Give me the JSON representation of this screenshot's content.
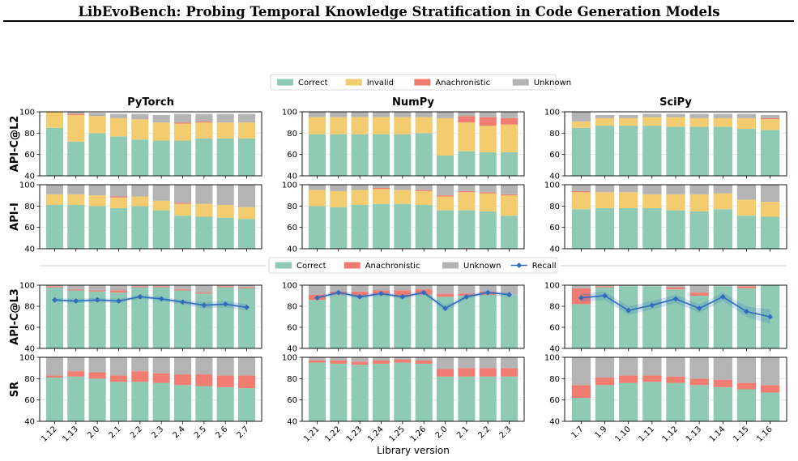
{
  "page": {
    "title": "LibEvoBench: Probing Temporal Knowledge Stratification in Code Generation Models"
  },
  "figure": {
    "columns": [
      "PyTorch",
      "NumPy",
      "SciPy"
    ],
    "rows": [
      "API-C@L2",
      "API-I",
      "API-C@L3",
      "SR"
    ],
    "xlabel": "Library version",
    "legend_top": [
      {
        "label": "Correct",
        "color": "#8ecab4"
      },
      {
        "label": "Invalid",
        "color": "#f2cc6e"
      },
      {
        "label": "Anachronistic",
        "color": "#f07c72"
      },
      {
        "label": "Unknown",
        "color": "#b4b4b4"
      }
    ],
    "legend_bottom": [
      {
        "label": "Correct",
        "color": "#8ecab4"
      },
      {
        "label": "Anachronistic",
        "color": "#f07c72"
      },
      {
        "label": "Unknown",
        "color": "#b4b4b4"
      },
      {
        "label": "Recall",
        "color": "#2f6cc0"
      }
    ]
  },
  "chart_data": {
    "type": "bar",
    "stacked": true,
    "ylim": [
      40,
      100
    ],
    "yticks": [
      40,
      60,
      80,
      100
    ],
    "grid": "horizontal",
    "categories": {
      "PyTorch": [
        "1.12",
        "1.13",
        "2.0",
        "2.1",
        "2.2",
        "2.3",
        "2.4",
        "2.5",
        "2.6",
        "2.7"
      ],
      "NumPy": [
        "1.21",
        "1.22",
        "1.23",
        "1.24",
        "1.25",
        "1.26",
        "2.0",
        "2.1",
        "2.2",
        "2.3"
      ],
      "SciPy": [
        "1.7",
        "1.9",
        "1.10",
        "1.11",
        "1.12",
        "1.13",
        "1.14",
        "1.15",
        "1.16"
      ]
    },
    "panels": {
      "API-C@L2": {
        "series_order": [
          "Correct",
          "Invalid",
          "Anachronistic",
          "Unknown"
        ],
        "PyTorch": {
          "Correct": [
            85,
            72,
            80,
            77,
            74,
            73,
            73,
            75,
            75,
            75
          ],
          "Invalid": [
            15,
            25,
            16,
            17,
            19,
            17,
            16,
            15,
            15,
            15
          ],
          "Anachronistic": [
            0,
            1,
            0,
            0,
            0,
            0,
            1,
            1,
            0,
            0
          ],
          "Unknown": [
            0,
            2,
            3,
            4,
            5,
            7,
            8,
            7,
            8,
            8
          ]
        },
        "NumPy": {
          "Correct": [
            79,
            79,
            79,
            79,
            79,
            80,
            59,
            63,
            62,
            62
          ],
          "Invalid": [
            16,
            16,
            16,
            16,
            16,
            15,
            35,
            27,
            25,
            26
          ],
          "Anachronistic": [
            0,
            0,
            0,
            0,
            0,
            0,
            0,
            6,
            8,
            6
          ],
          "Unknown": [
            5,
            5,
            5,
            5,
            5,
            5,
            6,
            4,
            5,
            6
          ]
        },
        "SciPy": {
          "Correct": [
            85,
            87,
            87,
            87,
            86,
            86,
            86,
            84,
            83
          ],
          "Invalid": [
            6,
            7,
            7,
            8,
            9,
            8,
            8,
            10,
            10
          ],
          "Anachronistic": [
            0,
            0,
            0,
            0,
            0,
            0,
            0,
            0,
            1
          ],
          "Unknown": [
            9,
            3,
            3,
            3,
            3,
            4,
            4,
            4,
            3
          ]
        }
      },
      "API-I": {
        "series_order": [
          "Correct",
          "Invalid",
          "Anachronistic",
          "Unknown"
        ],
        "PyTorch": {
          "Correct": [
            81,
            81,
            80,
            78,
            80,
            76,
            71,
            70,
            69,
            68
          ],
          "Invalid": [
            10,
            10,
            10,
            10,
            9,
            9,
            11,
            12,
            12,
            11
          ],
          "Anachronistic": [
            0,
            0,
            0,
            1,
            0,
            0,
            1,
            0,
            0,
            0
          ],
          "Unknown": [
            9,
            9,
            10,
            11,
            11,
            15,
            17,
            18,
            19,
            21
          ]
        },
        "NumPy": {
          "Correct": [
            80,
            79,
            81,
            82,
            82,
            81,
            76,
            76,
            75,
            71
          ],
          "Invalid": [
            15,
            15,
            14,
            14,
            13,
            13,
            13,
            17,
            17,
            19
          ],
          "Anachronistic": [
            0,
            0,
            0,
            1,
            0,
            1,
            1,
            1,
            1,
            1
          ],
          "Unknown": [
            5,
            6,
            5,
            3,
            5,
            5,
            10,
            6,
            7,
            9
          ]
        },
        "SciPy": {
          "Correct": [
            77,
            78,
            78,
            78,
            76,
            75,
            77,
            71,
            70
          ],
          "Invalid": [
            16,
            15,
            15,
            13,
            15,
            16,
            15,
            15,
            14
          ],
          "Anachronistic": [
            1,
            0,
            0,
            0,
            0,
            0,
            0,
            0,
            0
          ],
          "Unknown": [
            6,
            7,
            7,
            9,
            9,
            9,
            8,
            14,
            16
          ]
        }
      },
      "API-C@L3": {
        "series_order": [
          "Correct",
          "Anachronistic",
          "Unknown"
        ],
        "PyTorch": {
          "Correct": [
            98,
            95,
            94,
            93,
            98,
            98,
            95,
            92,
            98,
            97
          ],
          "Anachronistic": [
            1,
            1,
            1,
            2,
            1,
            1,
            1,
            1,
            1,
            1
          ],
          "Unknown": [
            1,
            4,
            5,
            5,
            1,
            1,
            4,
            7,
            1,
            2
          ],
          "Recall": [
            86,
            85,
            86,
            85,
            89,
            87,
            84,
            81,
            82,
            79
          ],
          "Recall_band": [
            [
              84,
              88
            ],
            [
              83,
              87
            ],
            [
              84,
              88
            ],
            [
              83,
              87
            ],
            [
              87,
              91
            ],
            [
              85,
              89
            ],
            [
              82,
              86
            ],
            [
              78,
              84
            ],
            [
              79,
              85
            ],
            [
              76,
              82
            ]
          ]
        },
        "NumPy": {
          "Correct": [
            86,
            91,
            90,
            91,
            89,
            91,
            89,
            90,
            91,
            91
          ],
          "Anachronistic": [
            5,
            3,
            4,
            4,
            6,
            5,
            3,
            2,
            3,
            0
          ],
          "Unknown": [
            9,
            6,
            6,
            5,
            5,
            4,
            8,
            8,
            6,
            9
          ],
          "Recall": [
            88,
            93,
            89,
            92,
            89,
            93,
            78,
            89,
            93,
            91
          ],
          "Recall_band": [
            [
              86,
              90
            ],
            [
              91,
              95
            ],
            [
              87,
              91
            ],
            [
              90,
              94
            ],
            [
              87,
              91
            ],
            [
              91,
              95
            ],
            [
              75,
              81
            ],
            [
              87,
              91
            ],
            [
              91,
              95
            ],
            [
              89,
              93
            ]
          ]
        },
        "SciPy": {
          "Correct": [
            82,
            98,
            99,
            99,
            96,
            90,
            99,
            97,
            100
          ],
          "Anachronistic": [
            15,
            1,
            0,
            0,
            2,
            3,
            0,
            2,
            0
          ],
          "Unknown": [
            3,
            1,
            1,
            1,
            2,
            7,
            1,
            1,
            0
          ],
          "Recall": [
            88,
            90,
            76,
            81,
            87,
            78,
            89,
            75,
            70
          ],
          "Recall_band": [
            [
              84,
              92
            ],
            [
              86,
              94
            ],
            [
              72,
              80
            ],
            [
              77,
              85
            ],
            [
              83,
              91
            ],
            [
              74,
              82
            ],
            [
              85,
              93
            ],
            [
              70,
              80
            ],
            [
              63,
              77
            ]
          ]
        }
      },
      "SR": {
        "series_order": [
          "Correct",
          "Anachronistic",
          "Unknown"
        ],
        "PyTorch": {
          "Correct": [
            81,
            82,
            80,
            77,
            77,
            76,
            74,
            73,
            72,
            71
          ],
          "Anachronistic": [
            2,
            5,
            6,
            6,
            10,
            9,
            10,
            11,
            11,
            12
          ],
          "Unknown": [
            17,
            13,
            14,
            17,
            13,
            15,
            16,
            16,
            17,
            17
          ]
        },
        "NumPy": {
          "Correct": [
            95,
            94,
            93,
            94,
            95,
            94,
            82,
            82,
            82,
            82
          ],
          "Anachronistic": [
            2,
            3,
            3,
            3,
            3,
            3,
            7,
            8,
            8,
            8
          ],
          "Unknown": [
            3,
            3,
            4,
            3,
            2,
            3,
            11,
            10,
            10,
            10
          ]
        },
        "SciPy": {
          "Correct": [
            62,
            74,
            76,
            77,
            76,
            74,
            72,
            70,
            67
          ],
          "Anachronistic": [
            12,
            7,
            7,
            6,
            6,
            6,
            7,
            6,
            7
          ],
          "Unknown": [
            26,
            19,
            17,
            17,
            18,
            20,
            21,
            24,
            26
          ]
        }
      }
    }
  }
}
